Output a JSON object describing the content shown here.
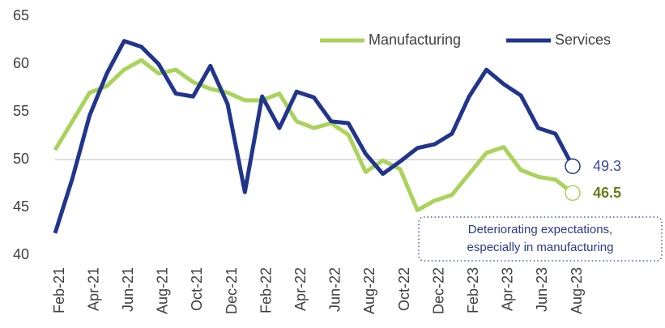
{
  "chart_data": {
    "type": "line",
    "categories": [
      "Feb-21",
      null,
      "Apr-21",
      null,
      "Jun-21",
      null,
      "Aug-21",
      null,
      "Oct-21",
      null,
      "Dec-21",
      null,
      "Feb-22",
      null,
      "Apr-22",
      null,
      "Jun-22",
      null,
      "Aug-22",
      null,
      "Oct-22",
      null,
      "Dec-22",
      null,
      "Feb-23",
      null,
      "Apr-23",
      null,
      "Jun-23",
      null,
      "Aug-23"
    ],
    "series": [
      {
        "name": "Manufacturing",
        "color": "#a9d35a",
        "label_color": "#6b7a1a",
        "values": [
          51.0,
          54.0,
          57.0,
          57.7,
          59.4,
          60.4,
          59.0,
          59.4,
          58.1,
          57.4,
          57.0,
          56.2,
          56.2,
          56.9,
          54.0,
          53.3,
          53.8,
          52.6,
          48.7,
          49.9,
          49.0,
          44.7,
          45.7,
          46.3,
          48.5,
          50.7,
          51.3,
          48.9,
          48.2,
          47.9,
          46.5
        ]
      },
      {
        "name": "Services",
        "color": "#21358c",
        "label_color": "#3a4a9a",
        "values": [
          42.3,
          48.0,
          54.6,
          59.0,
          62.4,
          61.8,
          60.0,
          56.9,
          56.6,
          59.8,
          55.8,
          46.6,
          56.6,
          53.3,
          57.1,
          56.5,
          54.0,
          53.8,
          50.6,
          48.5,
          49.8,
          51.2,
          51.6,
          52.7,
          56.6,
          59.4,
          57.9,
          56.7,
          53.3,
          52.7,
          49.3
        ]
      }
    ],
    "ylim": [
      40,
      65
    ],
    "yticks": [
      40,
      45,
      50,
      55,
      60,
      65
    ],
    "reference_line": 50,
    "legend": "top-right",
    "annotation": [
      "Deteriorating expectations,",
      "especially in manufacturing"
    ]
  }
}
